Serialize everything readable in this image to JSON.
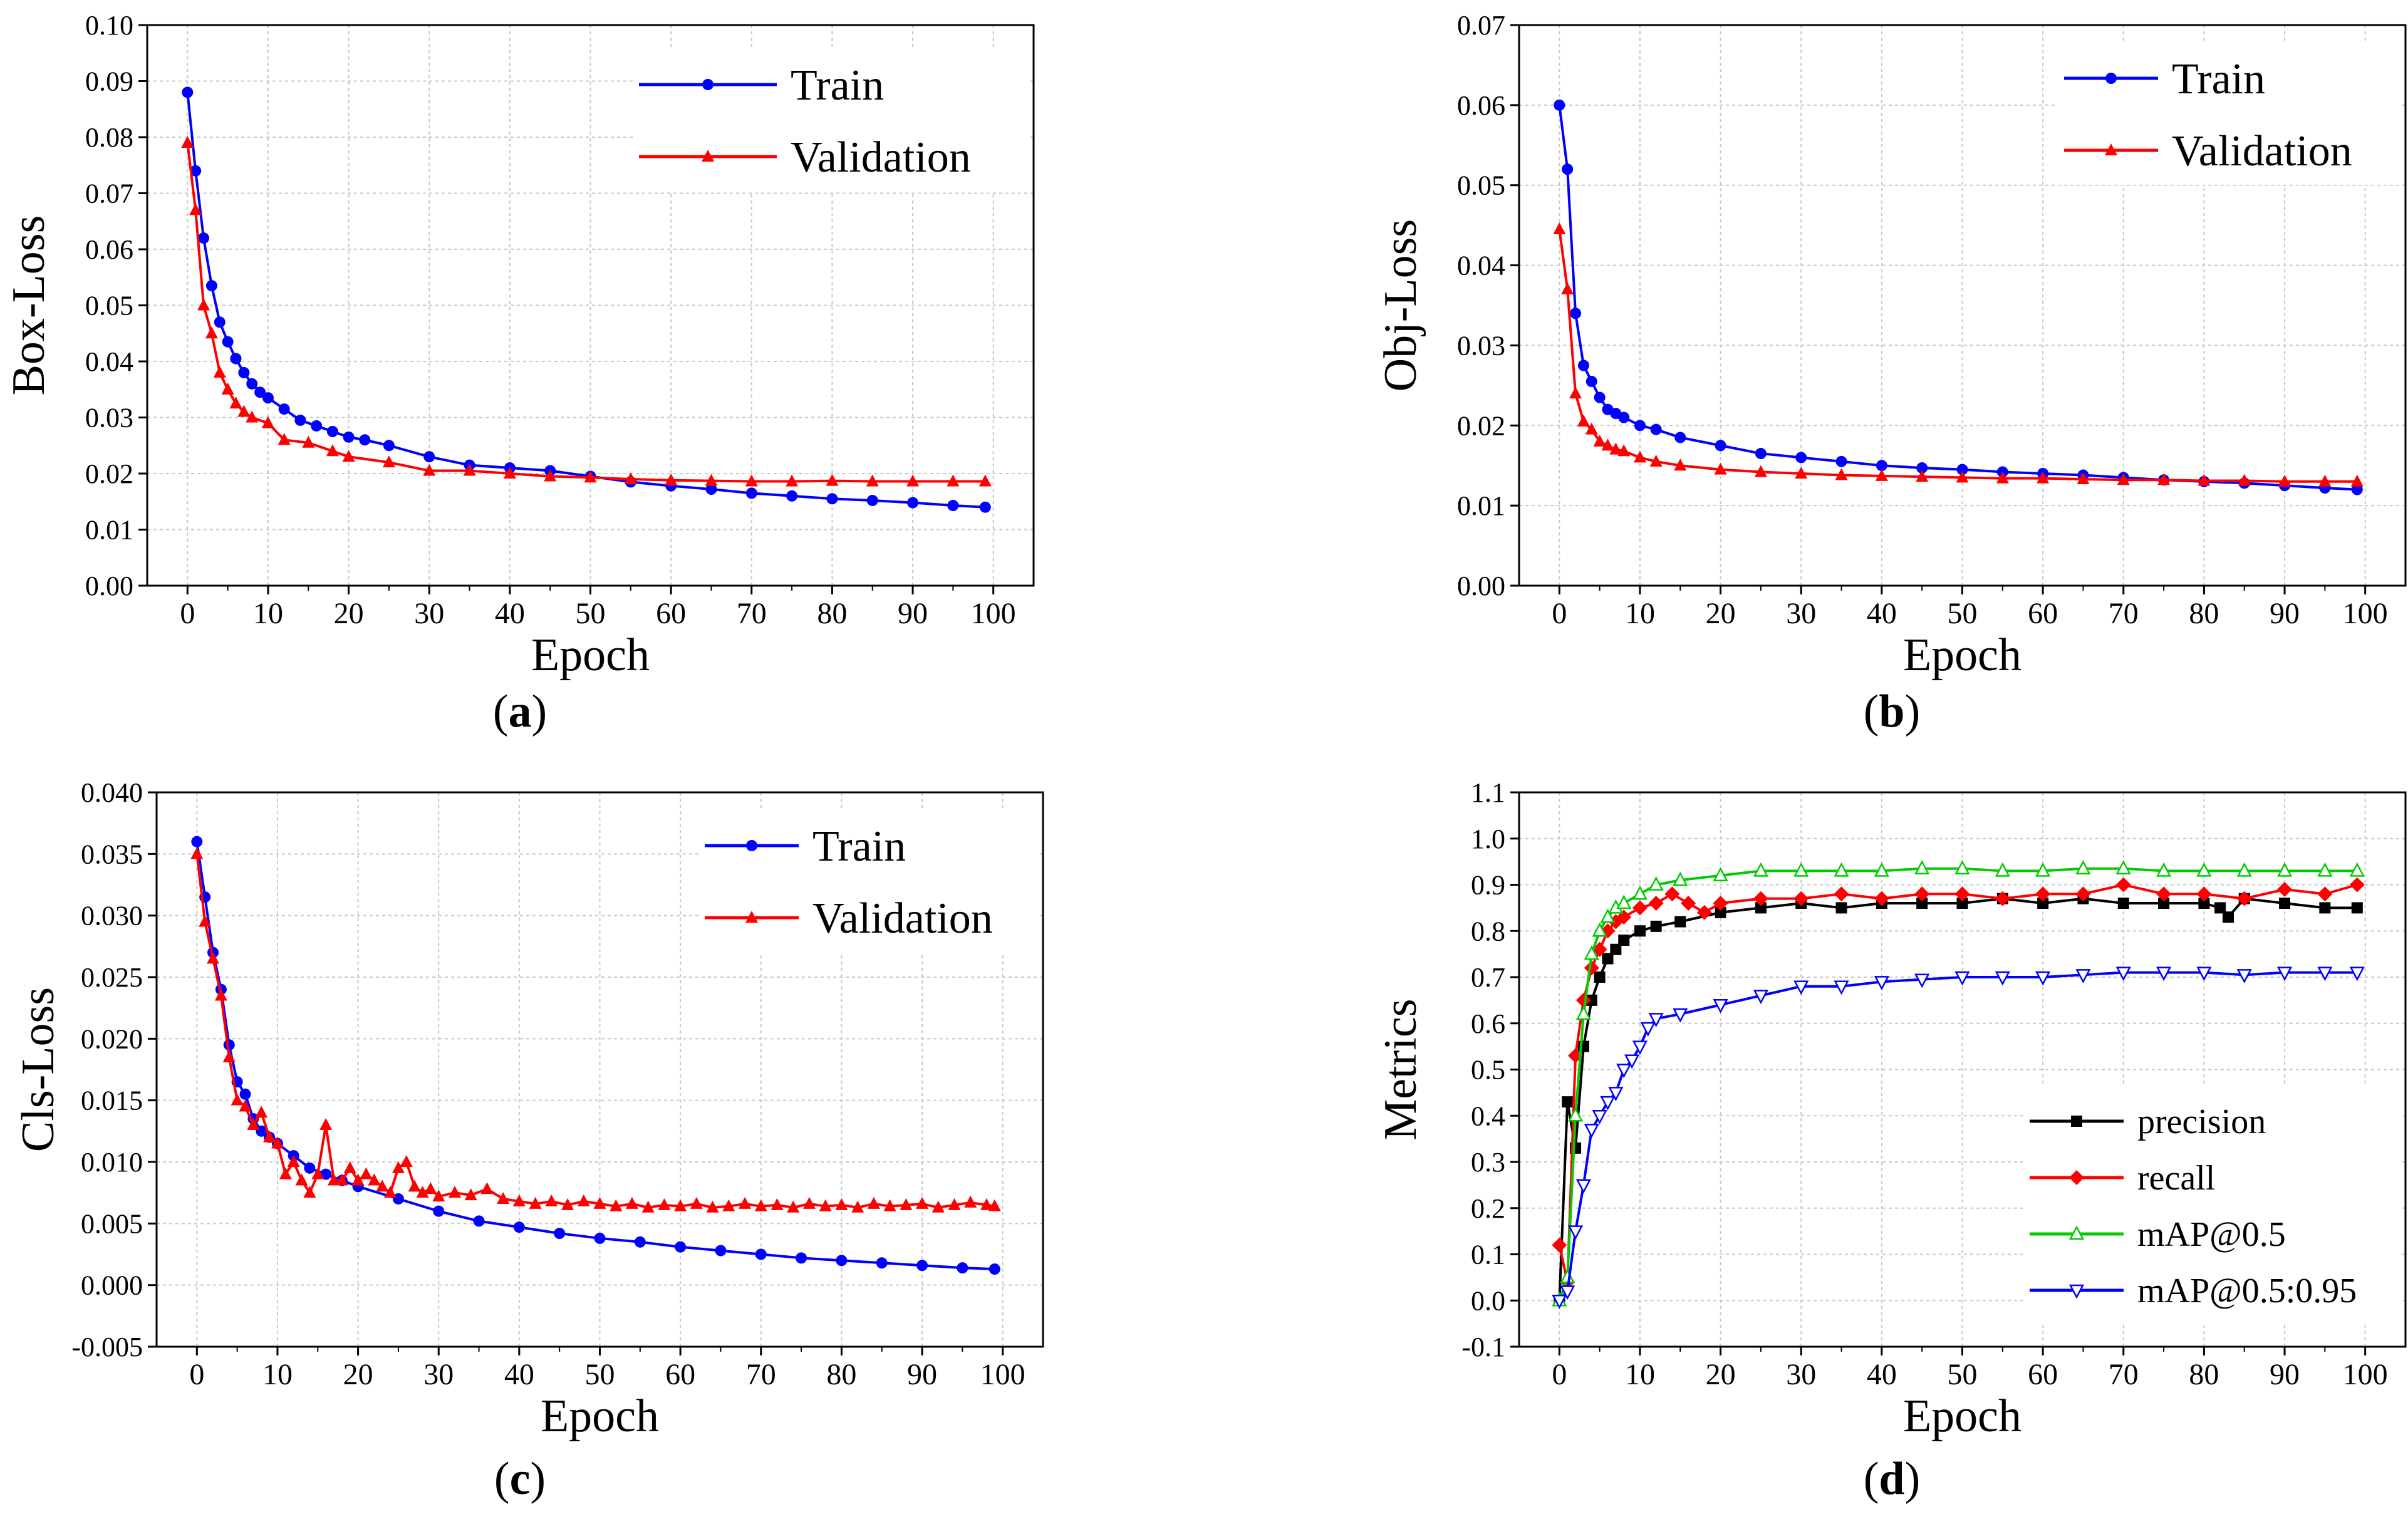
{
  "figure": {
    "panels": [
      {
        "id": "a",
        "caption_letter": "a"
      },
      {
        "id": "b",
        "caption_letter": "b"
      },
      {
        "id": "c",
        "caption_letter": "c"
      },
      {
        "id": "d",
        "caption_letter": "d"
      }
    ]
  },
  "chart_data": [
    {
      "id": "a",
      "type": "line",
      "title": "",
      "xlabel": "Epoch",
      "ylabel": "Box-Loss",
      "xlim": [
        -5,
        105
      ],
      "ylim": [
        0.0,
        0.1
      ],
      "xticks": [
        0,
        10,
        20,
        30,
        40,
        50,
        60,
        70,
        80,
        90,
        100
      ],
      "yticks": [
        0.0,
        0.01,
        0.02,
        0.03,
        0.04,
        0.05,
        0.06,
        0.07,
        0.08,
        0.09,
        0.1
      ],
      "ytick_labels": [
        "0.00",
        "0.01",
        "0.02",
        "0.03",
        "0.04",
        "0.05",
        "0.06",
        "0.07",
        "0.08",
        "0.09",
        "0.10"
      ],
      "grid": true,
      "legend": "top-right",
      "series": [
        {
          "name": "Train",
          "color": "#0000ff",
          "marker": "circle",
          "x": [
            0,
            1,
            2,
            3,
            4,
            5,
            6,
            7,
            8,
            9,
            10,
            12,
            14,
            16,
            18,
            20,
            22,
            25,
            30,
            35,
            40,
            45,
            50,
            55,
            60,
            65,
            70,
            75,
            80,
            85,
            90,
            95,
            99
          ],
          "y": [
            0.088,
            0.074,
            0.062,
            0.0535,
            0.047,
            0.0435,
            0.0405,
            0.038,
            0.036,
            0.0345,
            0.0335,
            0.0315,
            0.0295,
            0.0285,
            0.0275,
            0.0265,
            0.026,
            0.025,
            0.023,
            0.0215,
            0.021,
            0.0205,
            0.0195,
            0.0185,
            0.0178,
            0.0172,
            0.0165,
            0.016,
            0.0155,
            0.0152,
            0.0148,
            0.0143,
            0.014
          ]
        },
        {
          "name": "Validation",
          "color": "#ff0000",
          "marker": "triangle-up",
          "x": [
            0,
            1,
            2,
            3,
            4,
            5,
            6,
            7,
            8,
            10,
            12,
            15,
            18,
            20,
            25,
            30,
            35,
            40,
            45,
            50,
            55,
            60,
            65,
            70,
            75,
            80,
            85,
            90,
            95,
            99
          ],
          "y": [
            0.079,
            0.067,
            0.05,
            0.045,
            0.038,
            0.035,
            0.0325,
            0.031,
            0.03,
            0.029,
            0.026,
            0.0255,
            0.024,
            0.023,
            0.022,
            0.0205,
            0.0205,
            0.02,
            0.0195,
            0.0193,
            0.019,
            0.0188,
            0.0187,
            0.0186,
            0.0186,
            0.0187,
            0.0186,
            0.0186,
            0.0186,
            0.0186
          ]
        }
      ]
    },
    {
      "id": "b",
      "type": "line",
      "title": "",
      "xlabel": "Epoch",
      "ylabel": "Obj-Loss",
      "xlim": [
        -5,
        105
      ],
      "ylim": [
        0.0,
        0.07
      ],
      "xticks": [
        0,
        10,
        20,
        30,
        40,
        50,
        60,
        70,
        80,
        90,
        100
      ],
      "yticks": [
        0.0,
        0.01,
        0.02,
        0.03,
        0.04,
        0.05,
        0.06,
        0.07
      ],
      "ytick_labels": [
        "0.00",
        "0.01",
        "0.02",
        "0.03",
        "0.04",
        "0.05",
        "0.06",
        "0.07"
      ],
      "grid": true,
      "legend": "top-right",
      "series": [
        {
          "name": "Train",
          "color": "#0000ff",
          "marker": "circle",
          "x": [
            0,
            1,
            2,
            3,
            4,
            5,
            6,
            7,
            8,
            10,
            12,
            15,
            20,
            25,
            30,
            35,
            40,
            45,
            50,
            55,
            60,
            65,
            70,
            75,
            80,
            85,
            90,
            95,
            99
          ],
          "y": [
            0.06,
            0.052,
            0.034,
            0.0275,
            0.0255,
            0.0235,
            0.022,
            0.0215,
            0.021,
            0.02,
            0.0195,
            0.0185,
            0.0175,
            0.0165,
            0.016,
            0.0155,
            0.015,
            0.0147,
            0.0145,
            0.0142,
            0.014,
            0.0138,
            0.0135,
            0.0132,
            0.013,
            0.0128,
            0.0125,
            0.0122,
            0.012
          ]
        },
        {
          "name": "Validation",
          "color": "#ff0000",
          "marker": "triangle-up",
          "x": [
            0,
            1,
            2,
            3,
            4,
            5,
            6,
            7,
            8,
            10,
            12,
            15,
            20,
            25,
            30,
            35,
            40,
            45,
            50,
            55,
            60,
            65,
            70,
            75,
            80,
            85,
            90,
            95,
            99
          ],
          "y": [
            0.0445,
            0.037,
            0.024,
            0.0205,
            0.0195,
            0.018,
            0.0175,
            0.017,
            0.0168,
            0.016,
            0.0155,
            0.015,
            0.0145,
            0.0142,
            0.014,
            0.0138,
            0.0137,
            0.0136,
            0.0135,
            0.0134,
            0.0134,
            0.0133,
            0.0132,
            0.0132,
            0.0131,
            0.0131,
            0.013,
            0.013,
            0.013
          ]
        }
      ]
    },
    {
      "id": "c",
      "type": "line",
      "title": "",
      "xlabel": "Epoch",
      "ylabel": "Cls-Loss",
      "xlim": [
        -5,
        105
      ],
      "ylim": [
        -0.005,
        0.04
      ],
      "xticks": [
        0,
        10,
        20,
        30,
        40,
        50,
        60,
        70,
        80,
        90,
        100
      ],
      "yticks": [
        -0.005,
        0.0,
        0.005,
        0.01,
        0.015,
        0.02,
        0.025,
        0.03,
        0.035,
        0.04
      ],
      "ytick_labels": [
        "-0.005",
        "0.000",
        "0.005",
        "0.010",
        "0.015",
        "0.020",
        "0.025",
        "0.030",
        "0.035",
        "0.040"
      ],
      "grid": true,
      "legend": "top-right",
      "series": [
        {
          "name": "Train",
          "color": "#0000ff",
          "marker": "circle",
          "x": [
            0,
            1,
            2,
            3,
            4,
            5,
            6,
            7,
            8,
            9,
            10,
            12,
            14,
            16,
            18,
            20,
            25,
            30,
            35,
            40,
            45,
            50,
            55,
            60,
            65,
            70,
            75,
            80,
            85,
            90,
            95,
            99
          ],
          "y": [
            0.036,
            0.0315,
            0.027,
            0.024,
            0.0195,
            0.0165,
            0.0155,
            0.0135,
            0.0125,
            0.012,
            0.0115,
            0.0105,
            0.0095,
            0.009,
            0.0085,
            0.008,
            0.007,
            0.006,
            0.0052,
            0.0047,
            0.0042,
            0.0038,
            0.0035,
            0.0031,
            0.0028,
            0.0025,
            0.0022,
            0.002,
            0.0018,
            0.0016,
            0.0014,
            0.0013
          ]
        },
        {
          "name": "Validation",
          "color": "#ff0000",
          "marker": "triangle-up",
          "x": [
            0,
            1,
            2,
            3,
            4,
            5,
            6,
            7,
            8,
            9,
            10,
            11,
            12,
            13,
            14,
            15,
            16,
            17,
            18,
            19,
            20,
            21,
            22,
            23,
            24,
            25,
            26,
            27,
            28,
            29,
            30,
            32,
            34,
            36,
            38,
            40,
            42,
            44,
            46,
            48,
            50,
            52,
            54,
            56,
            58,
            60,
            62,
            64,
            66,
            68,
            70,
            72,
            74,
            76,
            78,
            80,
            82,
            84,
            86,
            88,
            90,
            92,
            94,
            96,
            98,
            99
          ],
          "y": [
            0.035,
            0.0295,
            0.0265,
            0.0235,
            0.0185,
            0.015,
            0.0145,
            0.013,
            0.014,
            0.012,
            0.0115,
            0.009,
            0.01,
            0.0085,
            0.0075,
            0.009,
            0.013,
            0.0085,
            0.0085,
            0.0095,
            0.0085,
            0.009,
            0.0085,
            0.008,
            0.0075,
            0.0095,
            0.01,
            0.008,
            0.0075,
            0.0078,
            0.0072,
            0.0075,
            0.0073,
            0.0078,
            0.007,
            0.0068,
            0.0066,
            0.0068,
            0.0065,
            0.0068,
            0.0066,
            0.0064,
            0.0066,
            0.0063,
            0.0065,
            0.0064,
            0.0066,
            0.0063,
            0.0064,
            0.0066,
            0.0064,
            0.0065,
            0.0063,
            0.0066,
            0.0064,
            0.0065,
            0.0063,
            0.0066,
            0.0064,
            0.0065,
            0.0066,
            0.0063,
            0.0065,
            0.0067,
            0.0065,
            0.0064
          ]
        }
      ]
    },
    {
      "id": "d",
      "type": "line",
      "title": "",
      "xlabel": "Epoch",
      "ylabel": "Metrics",
      "xlim": [
        -5,
        105
      ],
      "ylim": [
        -0.1,
        1.1
      ],
      "xticks": [
        0,
        10,
        20,
        30,
        40,
        50,
        60,
        70,
        80,
        90,
        100
      ],
      "yticks": [
        -0.1,
        0.0,
        0.1,
        0.2,
        0.3,
        0.4,
        0.5,
        0.6,
        0.7,
        0.8,
        0.9,
        1.0,
        1.1
      ],
      "ytick_labels": [
        "-0.1",
        "0.0",
        "0.1",
        "0.2",
        "0.3",
        "0.4",
        "0.5",
        "0.6",
        "0.7",
        "0.8",
        "0.9",
        "1.0",
        "1.1"
      ],
      "grid": true,
      "legend": "bottom-right",
      "series": [
        {
          "name": "precision",
          "color": "#000000",
          "marker": "square",
          "x": [
            0,
            1,
            2,
            3,
            4,
            5,
            6,
            7,
            8,
            10,
            12,
            15,
            20,
            25,
            30,
            35,
            40,
            45,
            50,
            55,
            60,
            65,
            70,
            75,
            80,
            82,
            83,
            85,
            90,
            95,
            99
          ],
          "y": [
            0.0,
            0.43,
            0.33,
            0.55,
            0.65,
            0.7,
            0.74,
            0.76,
            0.78,
            0.8,
            0.81,
            0.82,
            0.84,
            0.85,
            0.86,
            0.85,
            0.86,
            0.86,
            0.86,
            0.87,
            0.86,
            0.87,
            0.86,
            0.86,
            0.86,
            0.85,
            0.83,
            0.87,
            0.86,
            0.85,
            0.85
          ]
        },
        {
          "name": "recall",
          "color": "#ff0000",
          "marker": "diamond",
          "x": [
            0,
            1,
            2,
            3,
            4,
            5,
            6,
            7,
            8,
            10,
            12,
            14,
            16,
            18,
            20,
            25,
            30,
            35,
            40,
            45,
            50,
            55,
            60,
            65,
            70,
            75,
            80,
            85,
            90,
            95,
            99
          ],
          "y": [
            0.12,
            0.04,
            0.53,
            0.65,
            0.72,
            0.76,
            0.8,
            0.82,
            0.83,
            0.85,
            0.86,
            0.88,
            0.86,
            0.84,
            0.86,
            0.87,
            0.87,
            0.88,
            0.87,
            0.88,
            0.88,
            0.87,
            0.88,
            0.88,
            0.9,
            0.88,
            0.88,
            0.87,
            0.89,
            0.88,
            0.9
          ]
        },
        {
          "name": "mAP@0.5",
          "color": "#00cc00",
          "marker": "triangle-up-open",
          "x": [
            0,
            1,
            2,
            3,
            4,
            5,
            6,
            7,
            8,
            10,
            12,
            15,
            20,
            25,
            30,
            35,
            40,
            45,
            50,
            55,
            60,
            65,
            70,
            75,
            80,
            85,
            90,
            95,
            99
          ],
          "y": [
            0.0,
            0.05,
            0.4,
            0.62,
            0.75,
            0.8,
            0.83,
            0.85,
            0.86,
            0.88,
            0.9,
            0.91,
            0.92,
            0.93,
            0.93,
            0.93,
            0.93,
            0.935,
            0.935,
            0.93,
            0.93,
            0.935,
            0.935,
            0.93,
            0.93,
            0.93,
            0.93,
            0.93,
            0.93
          ]
        },
        {
          "name": "mAP@0.5:0.95",
          "color": "#0000ff",
          "marker": "triangle-down-open",
          "x": [
            0,
            1,
            2,
            3,
            4,
            5,
            6,
            7,
            8,
            9,
            10,
            11,
            12,
            15,
            20,
            25,
            30,
            35,
            40,
            45,
            50,
            55,
            60,
            65,
            70,
            75,
            80,
            85,
            90,
            95,
            99
          ],
          "y": [
            0.0,
            0.02,
            0.15,
            0.25,
            0.37,
            0.4,
            0.43,
            0.45,
            0.5,
            0.52,
            0.55,
            0.59,
            0.61,
            0.62,
            0.64,
            0.66,
            0.68,
            0.68,
            0.69,
            0.695,
            0.7,
            0.7,
            0.7,
            0.705,
            0.71,
            0.71,
            0.71,
            0.705,
            0.71,
            0.71,
            0.71
          ]
        }
      ]
    }
  ]
}
